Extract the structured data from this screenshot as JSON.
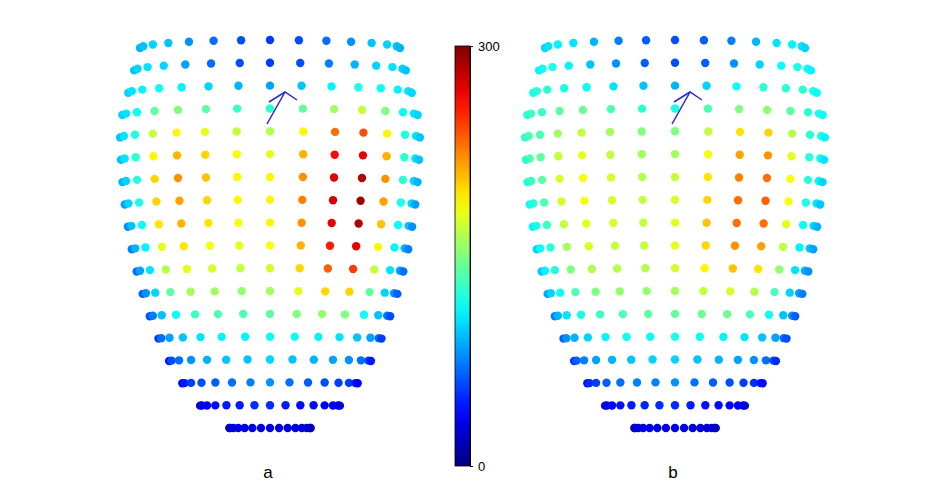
{
  "chart_data": {
    "type": "heatmap",
    "color_range": [
      0,
      300
    ],
    "color_ticks": [
      0,
      300
    ],
    "panels": [
      {
        "label": "a",
        "cells": [
          [
            90,
            95,
            100,
            95,
            80,
            70,
            60,
            55,
            60,
            70,
            80,
            95,
            100,
            95,
            90
          ],
          [
            95,
            100,
            105,
            100,
            85,
            70,
            60,
            55,
            60,
            75,
            90,
            100,
            105,
            100,
            95
          ],
          [
            100,
            105,
            110,
            115,
            110,
            100,
            90,
            85,
            95,
            110,
            120,
            115,
            110,
            105,
            100
          ],
          [
            100,
            105,
            115,
            140,
            150,
            140,
            130,
            125,
            140,
            160,
            170,
            150,
            115,
            105,
            100
          ],
          [
            95,
            105,
            120,
            170,
            190,
            180,
            170,
            165,
            190,
            230,
            240,
            190,
            120,
            105,
            95
          ],
          [
            95,
            105,
            125,
            190,
            210,
            200,
            185,
            180,
            210,
            260,
            270,
            210,
            125,
            105,
            95
          ],
          [
            90,
            100,
            125,
            200,
            220,
            205,
            190,
            190,
            220,
            270,
            285,
            220,
            125,
            100,
            90
          ],
          [
            85,
            100,
            120,
            200,
            215,
            200,
            190,
            190,
            225,
            275,
            290,
            215,
            120,
            100,
            85
          ],
          [
            80,
            95,
            115,
            195,
            210,
            195,
            185,
            190,
            220,
            270,
            285,
            205,
            115,
            95,
            80
          ],
          [
            75,
            90,
            110,
            180,
            195,
            185,
            180,
            185,
            210,
            255,
            270,
            190,
            110,
            90,
            75
          ],
          [
            70,
            85,
            105,
            165,
            180,
            175,
            170,
            175,
            200,
            235,
            245,
            170,
            105,
            85,
            70
          ],
          [
            65,
            80,
            100,
            140,
            160,
            160,
            155,
            160,
            180,
            200,
            200,
            140,
            100,
            80,
            65
          ],
          [
            60,
            75,
            95,
            115,
            130,
            135,
            135,
            140,
            150,
            155,
            150,
            115,
            95,
            75,
            60
          ],
          [
            55,
            70,
            85,
            95,
            105,
            110,
            110,
            115,
            115,
            110,
            105,
            95,
            85,
            70,
            55
          ],
          [
            45,
            60,
            70,
            80,
            90,
            95,
            95,
            100,
            95,
            90,
            85,
            80,
            70,
            60,
            45
          ],
          [
            35,
            45,
            55,
            60,
            65,
            70,
            75,
            80,
            70,
            65,
            60,
            55,
            55,
            45,
            35
          ],
          [
            25,
            30,
            35,
            40,
            45,
            45,
            50,
            50,
            45,
            40,
            40,
            35,
            35,
            30,
            25
          ],
          [
            20,
            22,
            25,
            28,
            30,
            30,
            30,
            30,
            30,
            28,
            28,
            25,
            25,
            22,
            20
          ]
        ]
      },
      {
        "label": "b",
        "cells": [
          [
            100,
            105,
            110,
            105,
            90,
            75,
            65,
            60,
            65,
            75,
            90,
            105,
            110,
            105,
            100
          ],
          [
            110,
            115,
            120,
            110,
            95,
            80,
            65,
            60,
            65,
            80,
            100,
            115,
            120,
            115,
            110
          ],
          [
            120,
            125,
            125,
            120,
            115,
            105,
            95,
            90,
            100,
            115,
            125,
            125,
            125,
            120,
            115
          ],
          [
            125,
            130,
            130,
            140,
            145,
            135,
            125,
            120,
            135,
            150,
            155,
            140,
            125,
            120,
            115
          ],
          [
            125,
            135,
            135,
            160,
            170,
            160,
            150,
            150,
            170,
            195,
            200,
            165,
            125,
            120,
            110
          ],
          [
            125,
            135,
            140,
            170,
            180,
            170,
            160,
            160,
            185,
            215,
            220,
            180,
            125,
            115,
            105
          ],
          [
            120,
            130,
            140,
            175,
            185,
            175,
            165,
            170,
            195,
            225,
            230,
            185,
            125,
            110,
            100
          ],
          [
            115,
            125,
            135,
            175,
            185,
            175,
            170,
            175,
            200,
            230,
            235,
            185,
            120,
            105,
            95
          ],
          [
            110,
            120,
            130,
            170,
            180,
            175,
            170,
            180,
            205,
            230,
            230,
            180,
            115,
            100,
            90
          ],
          [
            100,
            115,
            125,
            160,
            175,
            170,
            170,
            180,
            200,
            220,
            215,
            170,
            110,
            95,
            85
          ],
          [
            95,
            110,
            120,
            150,
            165,
            165,
            165,
            175,
            190,
            205,
            195,
            155,
            105,
            90,
            80
          ],
          [
            85,
            100,
            115,
            135,
            150,
            155,
            155,
            160,
            170,
            175,
            165,
            135,
            100,
            85,
            75
          ],
          [
            75,
            90,
            105,
            120,
            130,
            135,
            140,
            140,
            145,
            145,
            135,
            115,
            95,
            80,
            65
          ],
          [
            65,
            80,
            90,
            100,
            110,
            115,
            115,
            120,
            115,
            110,
            105,
            95,
            85,
            70,
            60
          ],
          [
            55,
            65,
            75,
            85,
            90,
            95,
            100,
            100,
            95,
            90,
            85,
            80,
            70,
            60,
            50
          ],
          [
            40,
            50,
            55,
            65,
            70,
            75,
            75,
            80,
            70,
            65,
            60,
            55,
            50,
            45,
            40
          ],
          [
            28,
            32,
            38,
            42,
            45,
            48,
            50,
            50,
            45,
            42,
            40,
            38,
            35,
            30,
            28
          ],
          [
            20,
            22,
            25,
            28,
            30,
            30,
            30,
            30,
            30,
            28,
            28,
            25,
            25,
            22,
            20
          ]
        ]
      }
    ]
  }
}
